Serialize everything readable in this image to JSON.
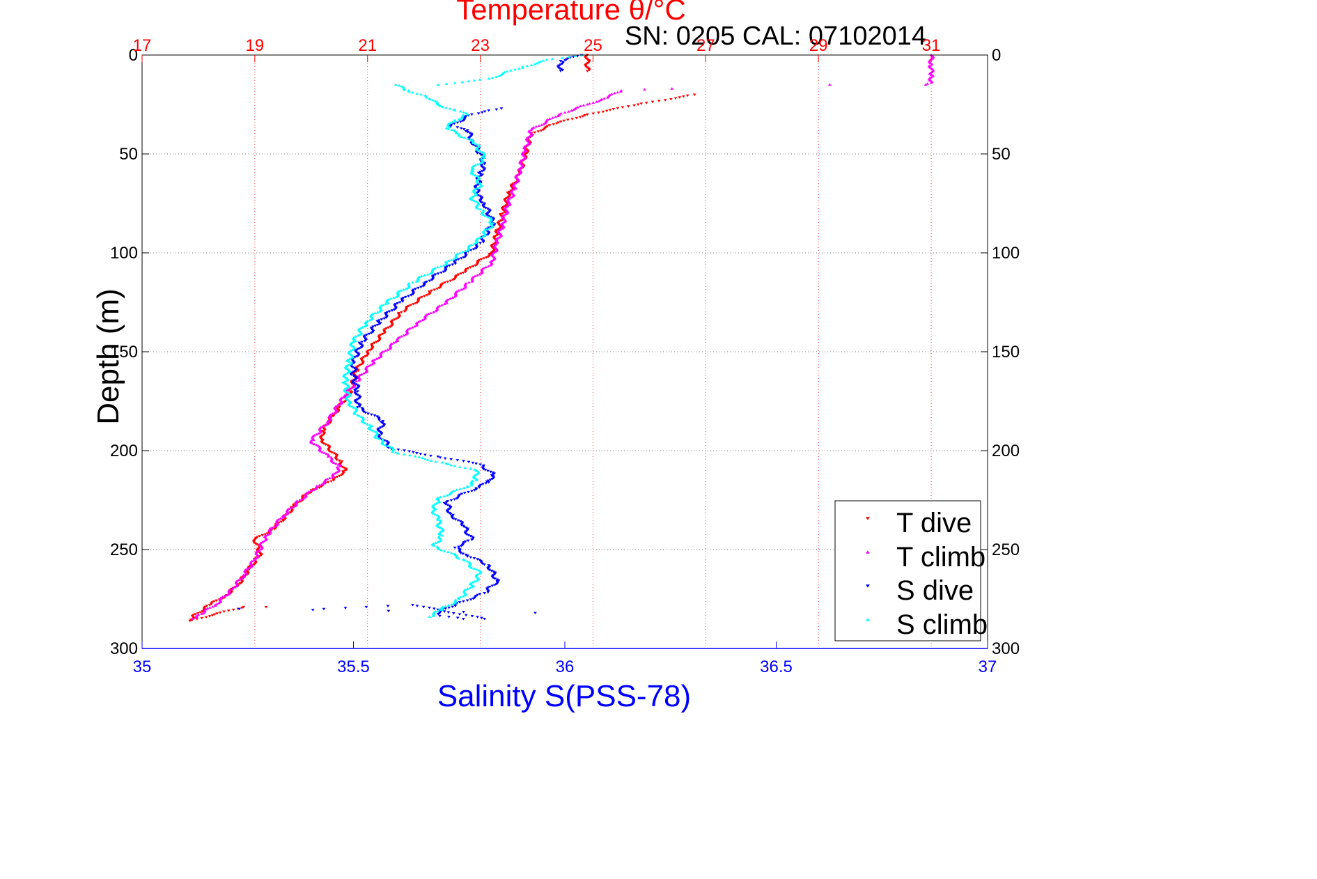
{
  "chart_data": {
    "type": "scatter",
    "title": "Temperature θ/°C",
    "subtitle": "SN: 0205  CAL: 07102014",
    "ylabel": "Depth (m)",
    "xlabel": "Salinity S(PSS-78)",
    "y_axis": {
      "range": [
        0,
        300
      ],
      "reversed": true,
      "ticks": [
        0,
        50,
        100,
        150,
        200,
        250,
        300
      ]
    },
    "temperature_axis": {
      "position": "top",
      "range": [
        17,
        32
      ],
      "ticks": [
        17,
        19,
        21,
        23,
        25,
        27,
        29,
        31
      ],
      "grid": true
    },
    "salinity_axis": {
      "position": "bottom",
      "range": [
        35,
        37
      ],
      "ticks": [
        35,
        35.5,
        36,
        36.5,
        37
      ],
      "tick_labels": [
        "35",
        "35.5",
        "36",
        "36.5",
        "37"
      ],
      "grid": false
    },
    "depth_grid": true,
    "legend_position": "bottom-right",
    "series": [
      {
        "name": "T dive",
        "axis": "temperature",
        "color": "#ff0000",
        "marker": "triangle-down",
        "points": [
          [
            24.9,
            0
          ],
          [
            24.9,
            8
          ],
          [
            26.8,
            20
          ],
          [
            25.8,
            25
          ],
          [
            24.9,
            30
          ],
          [
            24.3,
            35
          ],
          [
            23.9,
            40
          ],
          [
            23.8,
            50
          ],
          [
            23.7,
            60
          ],
          [
            23.5,
            70
          ],
          [
            23.4,
            80
          ],
          [
            23.3,
            90
          ],
          [
            23.2,
            100
          ],
          [
            22.7,
            110
          ],
          [
            22.1,
            120
          ],
          [
            21.6,
            130
          ],
          [
            21.3,
            140
          ],
          [
            21.0,
            150
          ],
          [
            20.8,
            160
          ],
          [
            20.7,
            170
          ],
          [
            20.5,
            178
          ],
          [
            20.4,
            182
          ],
          [
            20.2,
            190
          ],
          [
            20.2,
            195
          ],
          [
            20.5,
            205
          ],
          [
            20.6,
            210
          ],
          [
            20.4,
            215
          ],
          [
            20.0,
            220
          ],
          [
            19.7,
            228
          ],
          [
            19.5,
            235
          ],
          [
            19.3,
            240
          ],
          [
            19.0,
            245
          ],
          [
            19.1,
            252
          ],
          [
            18.9,
            260
          ],
          [
            18.7,
            268
          ],
          [
            18.5,
            273
          ],
          [
            18.2,
            278
          ],
          [
            17.9,
            284
          ],
          [
            17.85,
            286
          ],
          [
            18.8,
            279
          ],
          [
            19.2,
            279
          ]
        ]
      },
      {
        "name": "T climb",
        "axis": "temperature",
        "color": "#ff00ff",
        "marker": "triangle-up",
        "points": [
          [
            31.0,
            0
          ],
          [
            31.0,
            5
          ],
          [
            31.0,
            10
          ],
          [
            31.0,
            14
          ],
          [
            30.9,
            15
          ],
          [
            29.2,
            15
          ],
          [
            26.4,
            17
          ],
          [
            25.5,
            18
          ],
          [
            25.2,
            22
          ],
          [
            24.9,
            25
          ],
          [
            24.4,
            30
          ],
          [
            23.9,
            38
          ],
          [
            23.8,
            48
          ],
          [
            23.7,
            58
          ],
          [
            23.6,
            68
          ],
          [
            23.5,
            75
          ],
          [
            23.4,
            85
          ],
          [
            23.3,
            95
          ],
          [
            23.2,
            105
          ],
          [
            22.8,
            115
          ],
          [
            22.4,
            125
          ],
          [
            21.9,
            135
          ],
          [
            21.5,
            145
          ],
          [
            21.1,
            155
          ],
          [
            20.8,
            165
          ],
          [
            20.6,
            172
          ],
          [
            20.3,
            185
          ],
          [
            20.0,
            195
          ],
          [
            20.3,
            203
          ],
          [
            20.5,
            208
          ],
          [
            20.4,
            213
          ],
          [
            20.1,
            218
          ],
          [
            19.8,
            225
          ],
          [
            19.5,
            233
          ],
          [
            19.2,
            243
          ],
          [
            19.0,
            255
          ],
          [
            18.8,
            263
          ],
          [
            18.6,
            270
          ],
          [
            18.3,
            278
          ],
          [
            18.0,
            283
          ],
          [
            17.9,
            285
          ]
        ]
      },
      {
        "name": "S dive",
        "axis": "salinity",
        "color": "#0000ff",
        "marker": "triangle-down",
        "points": [
          [
            36.04,
            0
          ],
          [
            35.99,
            3
          ],
          [
            35.99,
            8
          ],
          [
            35.85,
            27
          ],
          [
            35.82,
            28
          ],
          [
            35.78,
            30
          ],
          [
            35.73,
            36
          ],
          [
            35.77,
            38
          ],
          [
            35.78,
            43
          ],
          [
            35.8,
            50
          ],
          [
            35.81,
            55
          ],
          [
            35.8,
            60
          ],
          [
            35.79,
            70
          ],
          [
            35.81,
            75
          ],
          [
            35.83,
            85
          ],
          [
            35.8,
            95
          ],
          [
            35.74,
            105
          ],
          [
            35.67,
            115
          ],
          [
            35.61,
            125
          ],
          [
            35.56,
            135
          ],
          [
            35.52,
            145
          ],
          [
            35.5,
            155
          ],
          [
            35.5,
            162
          ],
          [
            35.51,
            170
          ],
          [
            35.51,
            178
          ],
          [
            35.57,
            185
          ],
          [
            35.56,
            192
          ],
          [
            35.59,
            199
          ],
          [
            35.7,
            203
          ],
          [
            35.8,
            207
          ],
          [
            35.83,
            212
          ],
          [
            35.82,
            216
          ],
          [
            35.79,
            219
          ],
          [
            35.72,
            226
          ],
          [
            35.73,
            232
          ],
          [
            35.76,
            238
          ],
          [
            35.78,
            245
          ],
          [
            35.74,
            249
          ],
          [
            35.77,
            253
          ],
          [
            35.82,
            258
          ],
          [
            35.84,
            266
          ],
          [
            35.81,
            272
          ],
          [
            35.74,
            278
          ],
          [
            35.69,
            283
          ],
          [
            35.76,
            285
          ],
          [
            35.81,
            285
          ],
          [
            35.64,
            278
          ],
          [
            35.43,
            280
          ],
          [
            35.23,
            280
          ],
          [
            35.93,
            282
          ]
        ]
      },
      {
        "name": "S climb",
        "axis": "salinity",
        "color": "#00ffff",
        "marker": "triangle-up",
        "points": [
          [
            36.04,
            0
          ],
          [
            35.97,
            2
          ],
          [
            35.9,
            6
          ],
          [
            35.82,
            12
          ],
          [
            35.7,
            15
          ],
          [
            35.6,
            15
          ],
          [
            35.63,
            18
          ],
          [
            35.66,
            20
          ],
          [
            35.68,
            22
          ],
          [
            35.7,
            25
          ],
          [
            35.74,
            28
          ],
          [
            35.77,
            30
          ],
          [
            35.74,
            33
          ],
          [
            35.72,
            37
          ],
          [
            35.75,
            40
          ],
          [
            35.79,
            45
          ],
          [
            35.81,
            52
          ],
          [
            35.78,
            58
          ],
          [
            35.8,
            65
          ],
          [
            35.78,
            72
          ],
          [
            35.8,
            78
          ],
          [
            35.83,
            85
          ],
          [
            35.79,
            95
          ],
          [
            35.72,
            105
          ],
          [
            35.64,
            115
          ],
          [
            35.58,
            125
          ],
          [
            35.53,
            135
          ],
          [
            35.5,
            145
          ],
          [
            35.49,
            155
          ],
          [
            35.48,
            165
          ],
          [
            35.49,
            175
          ],
          [
            35.51,
            182
          ],
          [
            35.54,
            188
          ],
          [
            35.56,
            194
          ],
          [
            35.6,
            201
          ],
          [
            35.71,
            206
          ],
          [
            35.79,
            210
          ],
          [
            35.79,
            215
          ],
          [
            35.77,
            218
          ],
          [
            35.7,
            224
          ],
          [
            35.69,
            230
          ],
          [
            35.7,
            235
          ],
          [
            35.71,
            243
          ],
          [
            35.69,
            248
          ],
          [
            35.76,
            255
          ],
          [
            35.8,
            262
          ],
          [
            35.78,
            268
          ],
          [
            35.75,
            275
          ],
          [
            35.71,
            280
          ],
          [
            35.68,
            284
          ]
        ]
      }
    ]
  }
}
